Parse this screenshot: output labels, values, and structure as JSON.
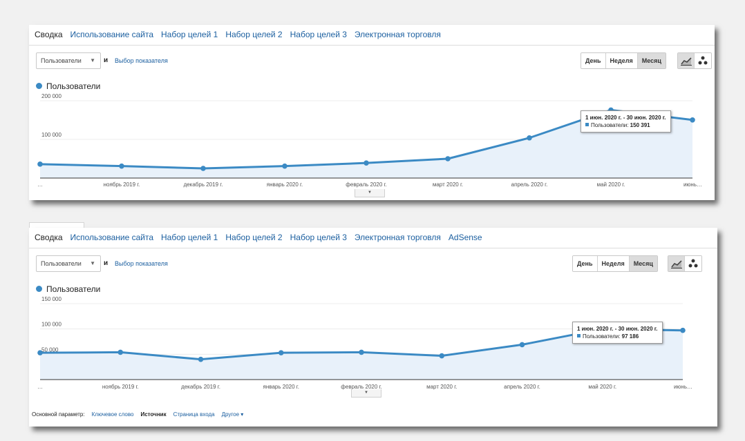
{
  "panels": [
    {
      "tabs": [
        "Сводка",
        "Использование сайта",
        "Набор целей 1",
        "Набор целей 2",
        "Набор целей 3",
        "Электронная торговля"
      ],
      "active_tab": 0,
      "metric_select": "Пользователи",
      "and_label": "и",
      "metric_link": "Выбор показателя",
      "period_buttons": [
        "День",
        "Неделя",
        "Месяц"
      ],
      "active_period": 2,
      "chart_buttons": [
        {
          "icon": "line-chart-icon",
          "active": true
        },
        {
          "icon": "motion-chart-icon",
          "active": false
        }
      ],
      "legend": "Пользователи",
      "tooltip": {
        "title": "1 июн. 2020 г. - 30 июн. 2020 г.",
        "label": "Пользователи:",
        "value": "150 391"
      },
      "drawer_icon": "▼",
      "chart_data": {
        "type": "area",
        "categories": [
          "…",
          "ноябрь 2019 г.",
          "декабрь 2019 г.",
          "январь 2020 г.",
          "февраль 2020 г.",
          "март 2020 г.",
          "апрель 2020 г.",
          "май 2020 г.",
          "июнь…"
        ],
        "series": [
          {
            "name": "Пользователи",
            "values": [
              36000,
              31000,
              25000,
              31000,
              39000,
              50000,
              104000,
              176000,
              150391
            ]
          }
        ],
        "y_ticks": [
          {
            "value": 100000,
            "label": "100 000"
          },
          {
            "value": 200000,
            "label": "200 000"
          }
        ],
        "ylim": [
          0,
          200000
        ],
        "grid": true,
        "color": "#3b8ac4",
        "fill": "#e8f1fa"
      }
    },
    {
      "tabs": [
        "Сводка",
        "Использование сайта",
        "Набор целей 1",
        "Набор целей 2",
        "Набор целей 3",
        "Электронная торговля",
        "AdSense"
      ],
      "active_tab": 0,
      "metric_select": "Пользователи",
      "and_label": "и",
      "metric_link": "Выбор показателя",
      "period_buttons": [
        "День",
        "Неделя",
        "Месяц"
      ],
      "active_period": 2,
      "chart_buttons": [
        {
          "icon": "line-chart-icon",
          "active": true
        },
        {
          "icon": "motion-chart-icon",
          "active": false
        }
      ],
      "legend": "Пользователи",
      "tooltip": {
        "title": "1 июн. 2020 г. - 30 июн. 2020 г.",
        "label": "Пользователи:",
        "value": "97 186"
      },
      "drawer_icon": "▼",
      "chart_data": {
        "type": "area",
        "categories": [
          "…",
          "ноябрь 2019 г.",
          "декабрь 2019 г.",
          "январь 2020 г.",
          "февраль 2020 г.",
          "март 2020 г.",
          "апрель 2020 г.",
          "май 2020 г.",
          "июнь…"
        ],
        "series": [
          {
            "name": "Пользователи",
            "values": [
              53000,
              54000,
              40000,
              53000,
              54000,
              47000,
              69000,
              100000,
              97186
            ]
          }
        ],
        "y_ticks": [
          {
            "value": 50000,
            "label": "50 000"
          },
          {
            "value": 100000,
            "label": "100 000"
          },
          {
            "value": 150000,
            "label": "150 000"
          }
        ],
        "ylim": [
          0,
          150000
        ],
        "grid": true,
        "color": "#3b8ac4",
        "fill": "#e8f1fa"
      },
      "dimension_row": {
        "label": "Основной параметр:",
        "items": [
          {
            "text": "Ключевое слово",
            "active": false
          },
          {
            "text": "Источник",
            "active": true
          },
          {
            "text": "Страница входа",
            "active": false
          },
          {
            "text": "Другое ▾",
            "active": false
          }
        ]
      }
    }
  ]
}
